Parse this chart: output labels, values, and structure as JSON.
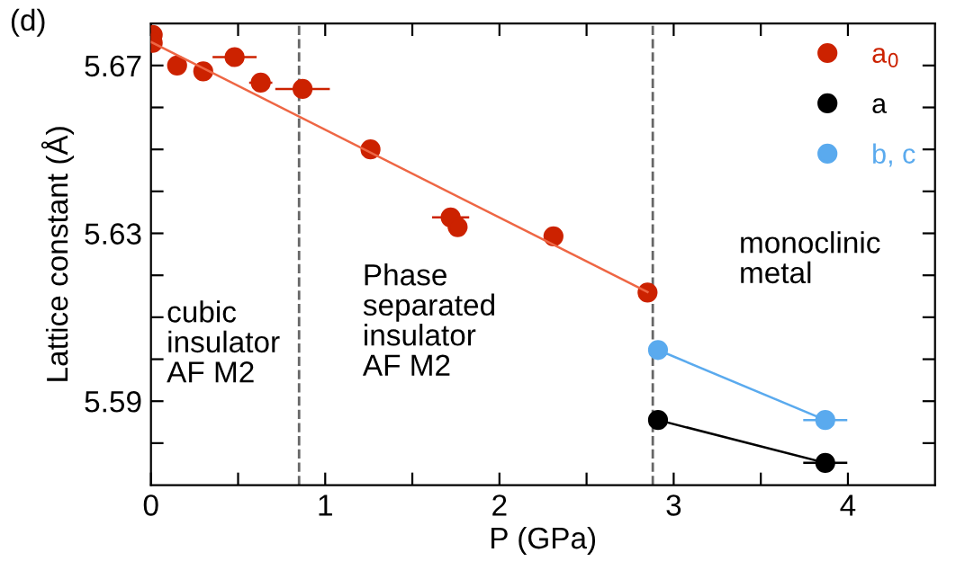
{
  "chart_data": {
    "type": "scatter",
    "title": "(d)",
    "xlabel": "P (GPa)",
    "ylabel": "Lattice constant (Å)",
    "xlim": [
      0,
      4.5
    ],
    "xticks": [
      0,
      1,
      2,
      3,
      4,
      {
        "value": 0.5,
        "label": null
      },
      {
        "value": 1.5,
        "label": null
      },
      {
        "value": 2.5,
        "label": null
      },
      {
        "value": 3.5,
        "label": null
      }
    ],
    "ylim": [
      5.57,
      5.68
    ],
    "yticks": [
      {
        "value": 5.58,
        "label": null
      },
      5.59,
      {
        "value": 5.6,
        "label": null
      },
      {
        "value": 5.61,
        "label": null
      },
      {
        "value": 5.62,
        "label": null
      },
      5.63,
      {
        "value": 5.64,
        "label": null
      },
      {
        "value": 5.65,
        "label": null
      },
      {
        "value": 5.66,
        "label": null
      },
      5.67
    ],
    "grid": false,
    "legend": "top right",
    "marker": "circle",
    "series": [
      {
        "name": "a$_{0}$",
        "color": "#cc2200",
        "x": [
          0.01,
          0.01,
          0.15,
          0.3,
          0.48,
          0.63,
          0.87,
          1.26,
          1.72,
          1.76,
          2.31,
          2.85
        ],
        "values": [
          5.6773,
          5.6754,
          5.67,
          5.6686,
          5.672,
          5.6659,
          5.6644,
          5.65,
          5.6338,
          5.6315,
          5.6293,
          5.6159
        ],
        "xerrors": [
          null,
          null,
          null,
          null,
          0.12,
          0.06,
          0.15,
          null,
          0.1,
          null,
          null,
          null
        ]
      },
      {
        "type": "line",
        "color": "#ee6644",
        "marker": "none",
        "x": [
          0,
          2.85
        ],
        "values": [
          5.6756,
          5.616
        ]
      },
      {
        "name": "a",
        "type": "line",
        "color": "#000000",
        "x": [
          2.91,
          3.87
        ],
        "values": [
          5.5855,
          5.5753
        ],
        "xerrors": [
          null,
          0.12
        ]
      },
      {
        "name": "b, c",
        "type": "line",
        "color": "#5aaaee",
        "x": [
          2.91,
          3.87
        ],
        "values": [
          5.6022,
          5.5855
        ],
        "xerrors": [
          null,
          0.12
        ]
      }
    ],
    "ref_lines": [
      {
        "axis": "x",
        "value": 0.85,
        "line_style": "dashed",
        "color": "#666666"
      },
      {
        "axis": "x",
        "value": 2.88,
        "line_style": "dashed",
        "color": "#666666"
      }
    ],
    "annotations": [
      "cubic\ninsulator\nAF M2",
      "Phase\nseparated\ninsulator\nAF M2",
      "monoclinic\nmetal"
    ]
  }
}
